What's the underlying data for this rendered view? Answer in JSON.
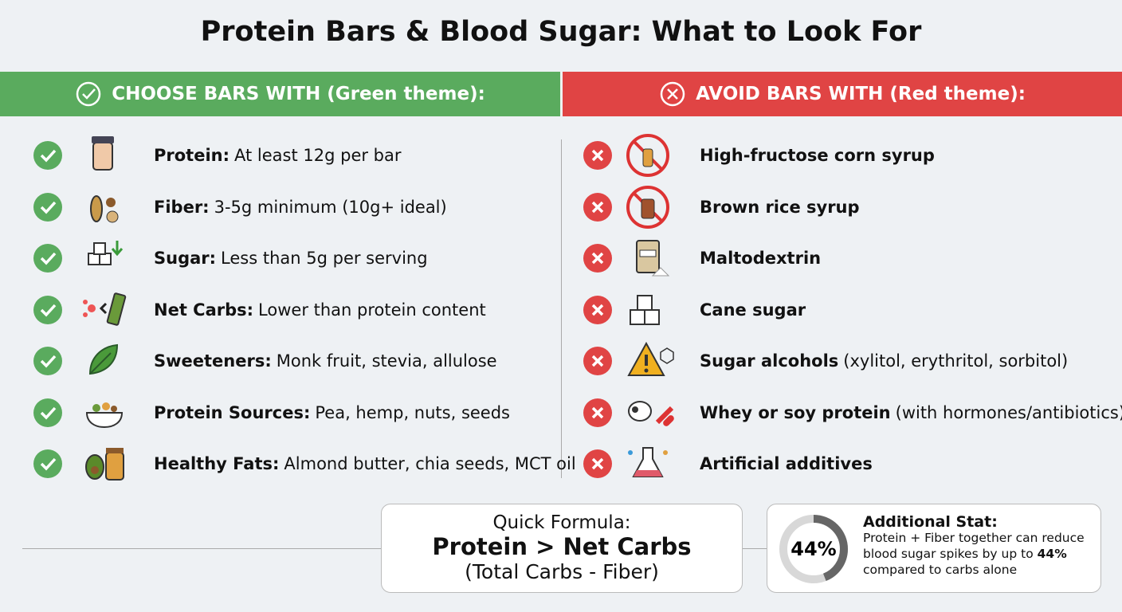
{
  "title": "Protein Bars & Blood Sugar: What to Look For",
  "choose": {
    "header": "CHOOSE BARS WITH (Green theme):",
    "items": [
      {
        "bold": "Protein:",
        "text": "At least 12g per bar"
      },
      {
        "bold": "Fiber:",
        "text": "3-5g minimum (10g+ ideal)"
      },
      {
        "bold": "Sugar:",
        "text": "Less than 5g per serving"
      },
      {
        "bold": "Net Carbs:",
        "text": "Lower than protein content"
      },
      {
        "bold": "Sweeteners:",
        "text": "Monk fruit, stevia, allulose"
      },
      {
        "bold": "Protein Sources:",
        "text": "Pea, hemp, nuts, seeds"
      },
      {
        "bold": "Healthy Fats:",
        "text": "Almond butter, chia seeds, MCT oil"
      }
    ]
  },
  "avoid": {
    "header": "AVOID BARS WITH (Red theme):",
    "items": [
      {
        "bold": "High-fructose corn syrup"
      },
      {
        "bold": "Brown rice syrup"
      },
      {
        "bold": "Maltodextrin"
      },
      {
        "bold": "Cane sugar"
      },
      {
        "bold": "Sugar alcohols",
        "text": "(xylitol, erythritol, sorbitol)"
      },
      {
        "bold": "Whey or soy protein",
        "text": "(with hormones/antibiotics)"
      },
      {
        "bold": "Artificial additives"
      }
    ]
  },
  "formula": {
    "heading": "Quick Formula:",
    "main": "Protein > Net Carbs",
    "note": "(Total Carbs - Fiber)"
  },
  "stat": {
    "value": 44,
    "label": "44%",
    "range": [
      0,
      100
    ],
    "title": "Additional Stat:",
    "text_before": "Protein + Fiber together can reduce blood sugar spikes by up to",
    "text_bold": "44%",
    "text_after": "compared to carbs alone"
  }
}
